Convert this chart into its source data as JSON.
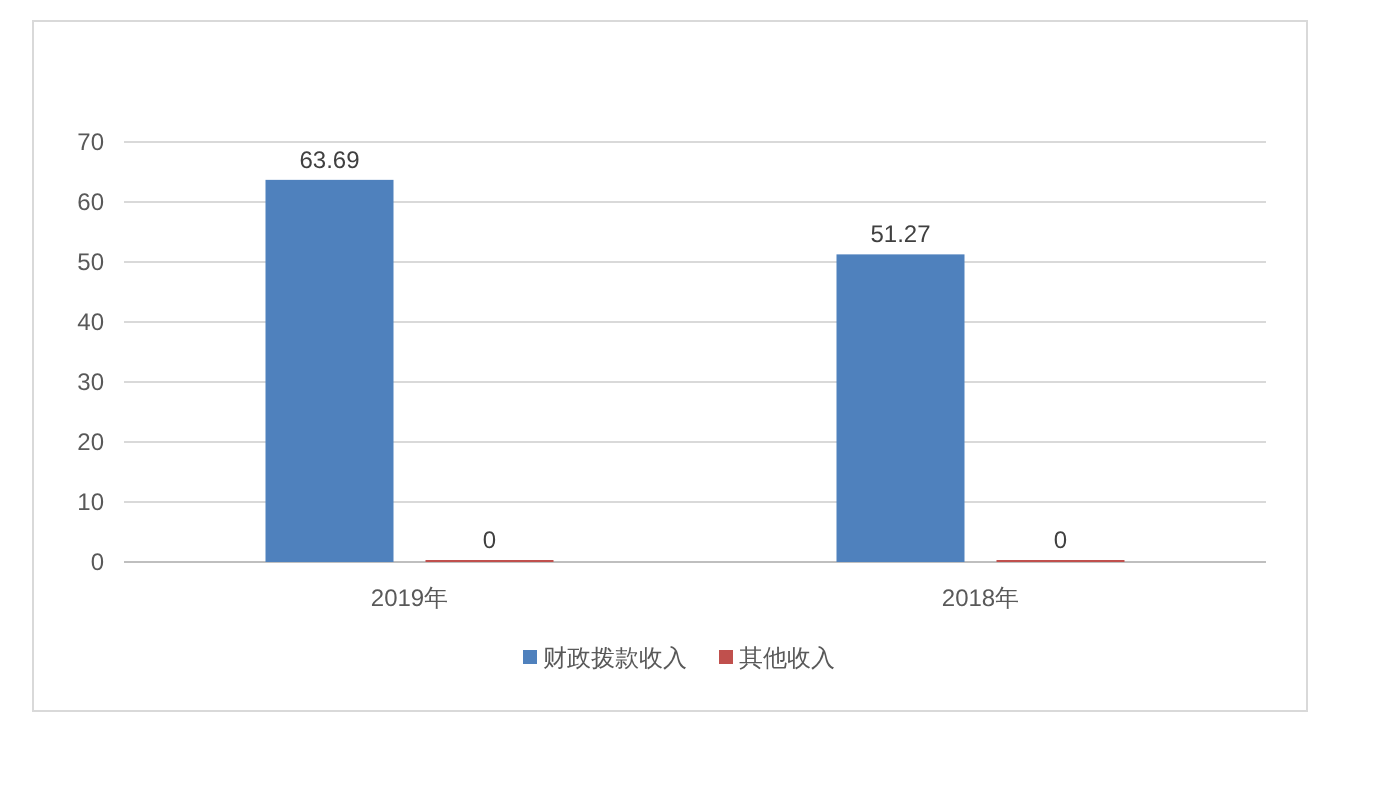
{
  "chart_data": {
    "type": "bar",
    "categories": [
      "2019年",
      "2018年"
    ],
    "series": [
      {
        "name": "财政拨款收入",
        "color": "#4f81bd",
        "values": [
          63.69,
          51.27
        ]
      },
      {
        "name": "其他收入",
        "color": "#c0504d",
        "values": [
          0,
          0
        ]
      }
    ],
    "ylim": [
      0,
      70
    ],
    "yticks": [
      0,
      10,
      20,
      30,
      40,
      50,
      60,
      70
    ],
    "grid": "y",
    "legend": "bottom",
    "data_labels": true
  }
}
